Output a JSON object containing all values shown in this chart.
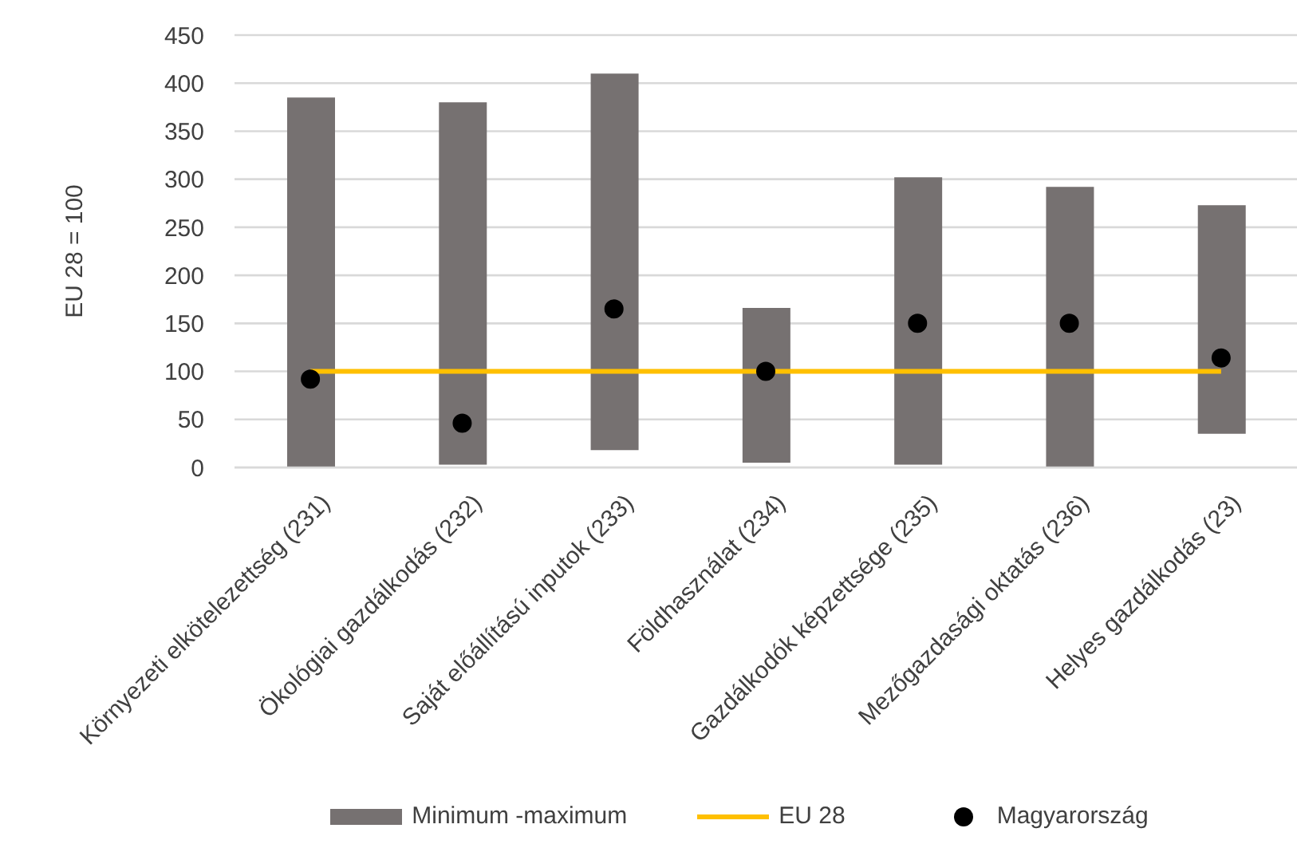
{
  "chart_data": {
    "type": "bar",
    "ylabel": "EU 28 = 100",
    "categories": [
      "Környezeti elkötelezettség (231)",
      "Ökológiai gazdálkodás (232)",
      "Saját előállítású inputok (233)",
      "Földhasználat (234)",
      "Gazdálkodók képzettsége (235)",
      "Mezőgazdasági oktatás (236)",
      "Helyes gazdálkodás (23)"
    ],
    "series": [
      {
        "name": "Minimum -maximum",
        "color": "#767171",
        "base": [
          0,
          3,
          18,
          5,
          3,
          0,
          35
        ],
        "values": [
          385,
          377,
          392,
          161,
          299,
          292,
          238
        ]
      },
      {
        "name": "EU 28",
        "type": "line",
        "color": "#ffc000",
        "values": [
          100,
          100,
          100,
          100,
          100,
          100,
          100
        ]
      },
      {
        "name": "Magyarország",
        "type": "scatter",
        "color": "#000000",
        "marker": "circle",
        "values": [
          92,
          46,
          165,
          100,
          150,
          150,
          114
        ]
      }
    ],
    "ylim": [
      0,
      450
    ],
    "yticks": [
      0,
      50,
      100,
      150,
      200,
      250,
      300,
      350,
      400,
      450
    ],
    "grid": "y",
    "legend": "bottom"
  }
}
